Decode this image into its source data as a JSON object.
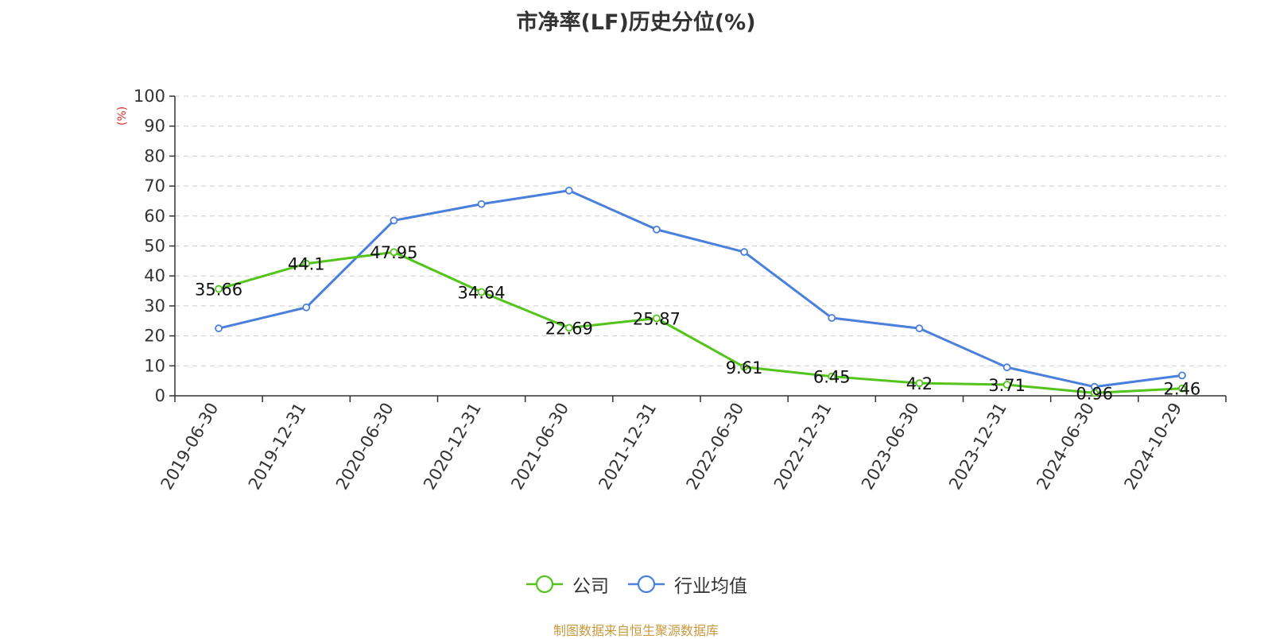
{
  "chart_data": {
    "type": "line",
    "title": "市净率(LF)历史分位(%)",
    "ylabel": "(%)",
    "ylim": [
      0,
      100
    ],
    "yticks": [
      0,
      10,
      20,
      30,
      40,
      50,
      60,
      70,
      80,
      90,
      100
    ],
    "grid": true,
    "legend_position": "bottom-center",
    "categories": [
      "2019-06-30",
      "2019-12-31",
      "2020-06-30",
      "2020-12-31",
      "2021-06-30",
      "2021-12-31",
      "2022-06-30",
      "2022-12-31",
      "2023-06-30",
      "2023-12-31",
      "2024-06-30",
      "2024-10-29"
    ],
    "series": [
      {
        "name": "公司",
        "color": "#52c41a",
        "values": [
          35.66,
          44.1,
          47.95,
          34.64,
          22.69,
          25.87,
          9.61,
          6.45,
          4.2,
          3.71,
          0.96,
          2.46
        ],
        "labels": [
          "35.66",
          "44.1",
          "47.95",
          "34.64",
          "22.69",
          "25.87",
          "9.61",
          "6.45",
          "4.2",
          "3.71",
          "0.96",
          "2.46"
        ]
      },
      {
        "name": "行业均值",
        "color": "#4a7fdc",
        "values": [
          22.5,
          29.5,
          58.5,
          64,
          68.5,
          55.5,
          48,
          26,
          22.5,
          9.5,
          3,
          6.8
        ]
      }
    ],
    "source": "制图数据来自恒生聚源数据库"
  }
}
